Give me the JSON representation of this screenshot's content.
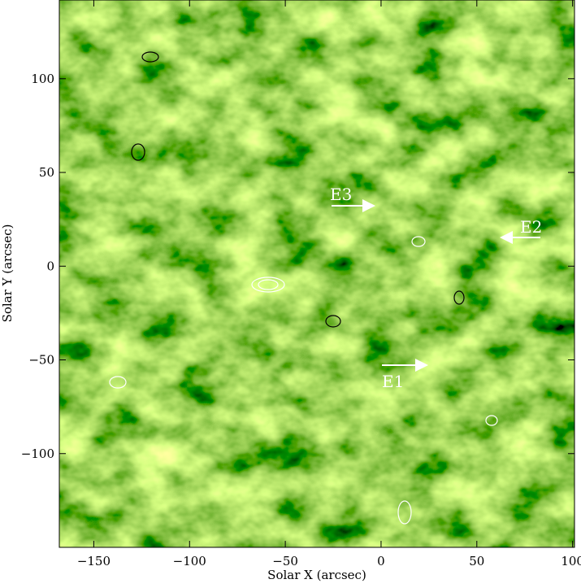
{
  "chart_data": {
    "type": "image",
    "xlabel": "Solar X (arcsec)",
    "ylabel": "Solar Y (arcsec)",
    "xlim": [
      -168,
      101
    ],
    "ylim": [
      -150,
      142
    ],
    "xticks": [
      {
        "value": -150,
        "label": "−150"
      },
      {
        "value": -100,
        "label": "−100"
      },
      {
        "value": -50,
        "label": "−50"
      },
      0,
      50,
      100
    ],
    "yticks": [
      {
        "value": -100,
        "label": "−100"
      },
      {
        "value": -50,
        "label": "−50"
      },
      0,
      50,
      100
    ],
    "annotations": [
      "E1",
      "E2",
      "E3"
    ]
  }
}
